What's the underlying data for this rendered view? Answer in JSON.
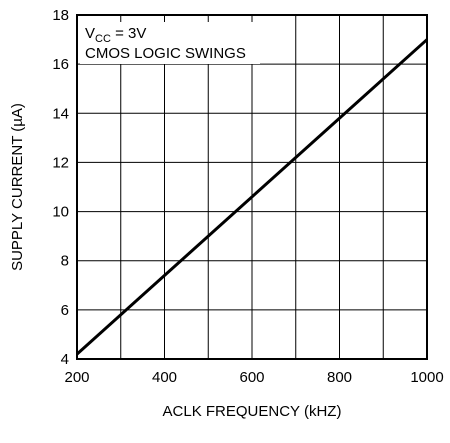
{
  "chart_data": {
    "type": "line",
    "title": "",
    "xlabel": "ACLK FREQUENCY (kHZ)",
    "ylabel": "SUPPLY CURRENT (µA)",
    "xlim": [
      200,
      1000
    ],
    "ylim": [
      4,
      18
    ],
    "x_ticks": [
      200,
      400,
      600,
      800,
      1000
    ],
    "y_ticks": [
      4,
      6,
      8,
      10,
      12,
      14,
      16,
      18
    ],
    "grid": true,
    "x_grid_step": 100,
    "y_grid_step": 2,
    "annotation": {
      "line1_prefix": "V",
      "line1_sub": "CC",
      "line1_suffix": " = 3V",
      "line2": "CMOS LOGIC SWINGS"
    },
    "series": [
      {
        "x": [
          200,
          1000
        ],
        "y": [
          4.2,
          17.0
        ]
      }
    ]
  }
}
